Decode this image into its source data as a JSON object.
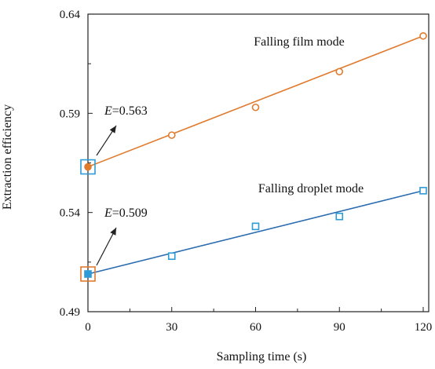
{
  "chart_data": {
    "type": "scatter",
    "xlabel": "Sampling time (s)",
    "ylabel": "Extraction efficiency",
    "xlim": [
      0,
      125
    ],
    "ylim": [
      0.49,
      0.64
    ],
    "xticks": [
      0,
      30,
      60,
      90,
      120
    ],
    "xtick_labels": [
      "0",
      "30",
      "60",
      "90",
      "120"
    ],
    "yticks": [
      0.49,
      0.54,
      0.59,
      0.64
    ],
    "ytick_labels": [
      "0.49",
      "0.54",
      "0.59",
      "0.64"
    ],
    "grid": false,
    "series": [
      {
        "name": "Falling film mode",
        "marker": "circle",
        "color": "#E07B2E",
        "x": [
          0,
          30,
          60,
          90,
          120
        ],
        "y": [
          0.563,
          0.579,
          0.593,
          0.611,
          0.629
        ],
        "fit_line": {
          "x": [
            0,
            120
          ],
          "y": [
            0.563,
            0.629
          ]
        },
        "annotation": {
          "prefix": "E",
          "text": "=0.563",
          "x": 0,
          "y": 0.563,
          "box_color": "#2E9BD6"
        }
      },
      {
        "name": "Falling droplet mode",
        "marker": "square",
        "color": "#2E9BD6",
        "x": [
          0,
          30,
          60,
          90,
          120
        ],
        "y": [
          0.509,
          0.518,
          0.533,
          0.538,
          0.551
        ],
        "fit_line": {
          "x": [
            0,
            120
          ],
          "y": [
            0.509,
            0.551
          ]
        },
        "annotation": {
          "prefix": "E",
          "text": "=0.509",
          "x": 0,
          "y": 0.509,
          "box_color": "#E07B2E"
        }
      }
    ],
    "line_color_droplet": "#2B6CB0"
  }
}
